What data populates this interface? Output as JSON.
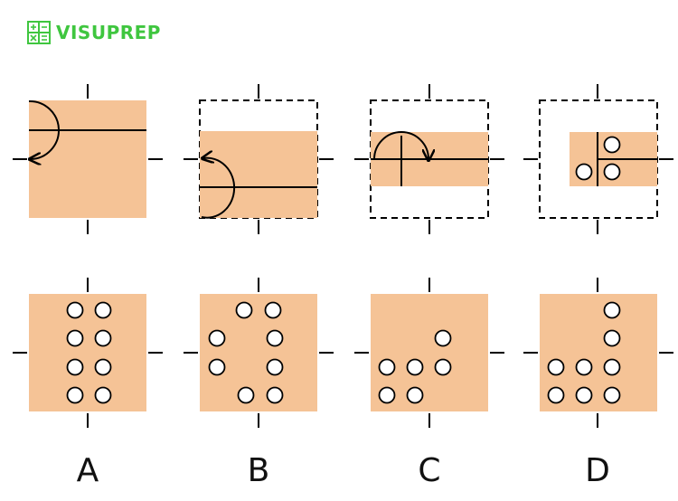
{
  "brand": {
    "name": "VISUPREP",
    "logo_icon": "calculator-icon",
    "color": "#3fc63f"
  },
  "colors": {
    "paper": "#f5c396",
    "ink": "#000000",
    "hole": "#ffffff"
  },
  "fold_steps": [
    "fold-left-edge-to-right",
    "fold-bottom-half-up",
    "fold-left-half-over",
    "punch-three-holes"
  ],
  "options": [
    {
      "label": "A"
    },
    {
      "label": "B"
    },
    {
      "label": "C"
    },
    {
      "label": "D"
    }
  ]
}
